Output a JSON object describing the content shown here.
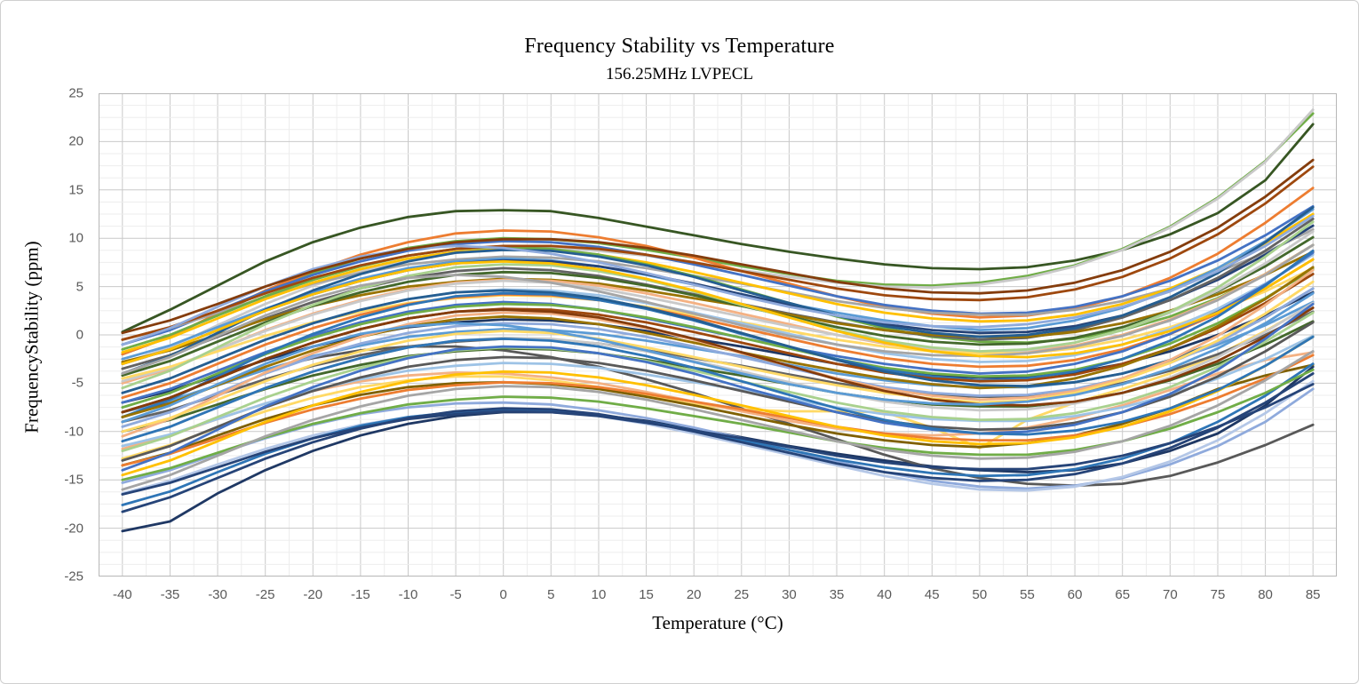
{
  "chart_data": {
    "type": "line",
    "title": "Frequency Stability vs Temperature",
    "subtitle": "156.25MHz LVPECL",
    "xlabel": "Temperature (°C)",
    "ylabel": "FrequencyStability (ppm)",
    "xlim": [
      -42.5,
      87.5
    ],
    "ylim": [
      -25,
      25
    ],
    "x_ticks": [
      -40,
      -35,
      -30,
      -25,
      -20,
      -15,
      -10,
      -5,
      0,
      5,
      10,
      15,
      20,
      25,
      30,
      35,
      40,
      45,
      50,
      55,
      60,
      65,
      70,
      75,
      80,
      85
    ],
    "y_ticks": [
      25,
      20,
      15,
      10,
      5,
      0,
      -5,
      -10,
      -15,
      -20,
      -25
    ],
    "grid": {
      "x_major": 5,
      "x_minor": 2.5,
      "y_major": 5,
      "y_minor": 1.25,
      "major_color": "#c9c9c9",
      "minor_color": "#ededed",
      "border_color": "#b7b7b7"
    },
    "legend": "none",
    "tick_label_color": "#595959",
    "line_width": 2.8,
    "x": [
      -40,
      -35,
      -30,
      -25,
      -20,
      -15,
      -10,
      -5,
      0,
      5,
      10,
      15,
      20,
      25,
      30,
      35,
      40,
      45,
      50,
      55,
      60,
      65,
      70,
      75,
      80,
      85
    ],
    "shapes": {
      "A": [
        0,
        1.5,
        3.5,
        5.5,
        7.2,
        8.6,
        9.7,
        10.4,
        10.7,
        10.6,
        10.1,
        9.3,
        8.3,
        7.2,
        6.1,
        5.0,
        4.1,
        3.5,
        3.2,
        3.3,
        3.9,
        5.0,
        6.6,
        8.7,
        11.3,
        14.3
      ],
      "B": [
        0,
        1.2,
        2.8,
        4.4,
        5.8,
        6.9,
        7.8,
        8.3,
        8.6,
        8.5,
        8.1,
        7.4,
        6.6,
        5.8,
        4.9,
        4.0,
        3.3,
        2.8,
        2.6,
        2.6,
        3.1,
        4.0,
        5.3,
        7.0,
        9.0,
        11.4
      ],
      "C": [
        0,
        1.8,
        4.2,
        6.6,
        8.6,
        10.3,
        11.6,
        12.5,
        12.8,
        12.7,
        12.1,
        11.2,
        10.0,
        8.6,
        7.3,
        6.0,
        4.9,
        4.2,
        3.8,
        4.0,
        4.7,
        6.0,
        7.9,
        10.4,
        13.6,
        17.2
      ],
      "D": [
        0,
        1.5,
        3.5,
        5.5,
        7.2,
        8.6,
        9.7,
        10.4,
        10.6,
        10.4,
        9.8,
        8.8,
        7.6,
        6.2,
        4.8,
        3.4,
        2.2,
        1.3,
        0.8,
        0.7,
        1.1,
        2.0,
        3.4,
        5.3,
        7.8,
        10.8
      ],
      "E": [
        0,
        1.7,
        3.9,
        6.0,
        7.8,
        9.1,
        9.9,
        10.2,
        10.0,
        9.4,
        8.5,
        7.4,
        6.2,
        5.0,
        3.9,
        3.0,
        2.3,
        1.9,
        1.8,
        2.1,
        2.8,
        3.9,
        5.5,
        7.6,
        10.2,
        13.3
      ],
      "F": [
        0,
        1.3,
        3.0,
        4.8,
        6.4,
        7.7,
        8.7,
        9.4,
        9.7,
        9.7,
        9.4,
        8.8,
        8.0,
        7.1,
        6.2,
        5.3,
        4.6,
        4.2,
        4.1,
        4.4,
        5.2,
        6.5,
        8.4,
        10.9,
        14.1,
        17.9
      ],
      "G": [
        0,
        1.4,
        3.3,
        5.2,
        6.9,
        8.3,
        9.4,
        10.1,
        10.4,
        10.2,
        9.6,
        8.7,
        7.7,
        6.7,
        5.7,
        4.8,
        4.0,
        3.4,
        3.0,
        3.2,
        4.0,
        5.3,
        7.1,
        9.4,
        12.2,
        15.5
      ]
    },
    "series": [
      {
        "color": "#375623",
        "values": [
          0.3,
          2.6,
          5.1,
          7.6,
          9.6,
          11.1,
          12.2,
          12.8,
          12.9,
          12.8,
          12.1,
          11.2,
          10.3,
          9.4,
          8.6,
          7.9,
          7.3,
          6.9,
          6.8,
          7.0,
          7.7,
          8.8,
          10.4,
          12.6,
          16.0,
          21.8
        ]
      },
      {
        "color": "#70AD47",
        "values": [
          -2.0,
          -0.2,
          2.2,
          4.5,
          6.4,
          7.9,
          9.0,
          9.7,
          10.0,
          9.9,
          9.5,
          8.8,
          8.0,
          7.1,
          6.3,
          5.6,
          5.2,
          5.1,
          5.4,
          6.1,
          7.2,
          8.9,
          11.2,
          14.2,
          18.0,
          22.9
        ]
      },
      {
        "color": "#C9C9C9",
        "values": [
          -3.0,
          -1.3,
          1.0,
          3.2,
          5.1,
          6.6,
          7.7,
          8.5,
          8.9,
          9.0,
          8.7,
          8.2,
          7.5,
          6.7,
          6.0,
          5.4,
          5.0,
          4.9,
          5.2,
          5.9,
          7.1,
          8.8,
          11.1,
          14.1,
          17.9,
          23.3
        ]
      },
      {
        "color": "#1F3864",
        "values": [
          -20.3,
          -19.3,
          -16.4,
          -14.0,
          -12.0,
          -10.4,
          -9.2,
          -8.4,
          -8.0,
          -8.0,
          -8.3,
          -8.9,
          -9.7,
          -10.6,
          -11.5,
          -12.3,
          -13.0,
          -13.6,
          -14.0,
          -14.2,
          -14.0,
          -13.3,
          -12.0,
          -10.2,
          -7.3,
          -3.3
        ]
      },
      {
        "color": "#595959",
        "values": [
          -8.5,
          -7.0,
          -5.2,
          -3.6,
          -2.4,
          -1.6,
          -1.2,
          -1.2,
          -1.6,
          -2.3,
          -3.3,
          -4.6,
          -6.0,
          -7.6,
          -9.2,
          -10.8,
          -12.4,
          -13.8,
          -14.8,
          -15.4,
          -15.6,
          -15.4,
          -14.6,
          -13.2,
          -11.4,
          -9.3
        ]
      },
      {
        "color": "#8FAADC",
        "values": [
          -15.3,
          -14.0,
          -12.3,
          -10.7,
          -9.3,
          -8.2,
          -7.5,
          -7.1,
          -7.0,
          -7.2,
          -7.8,
          -8.6,
          -9.6,
          -10.7,
          -11.9,
          -13.1,
          -14.2,
          -15.1,
          -15.7,
          -15.9,
          -15.6,
          -14.8,
          -13.4,
          -11.5,
          -9.0,
          -5.6
        ]
      },
      {
        "color": "#B4C7E7",
        "values": [
          -16.4,
          -15.1,
          -13.4,
          -11.8,
          -10.4,
          -9.3,
          -8.5,
          -8.0,
          -7.8,
          -7.9,
          -8.4,
          -9.2,
          -10.2,
          -11.3,
          -12.4,
          -13.5,
          -14.6,
          -15.4,
          -16.0,
          -16.1,
          -15.7,
          -14.7,
          -13.1,
          -10.9,
          -8.1,
          -4.8
        ]
      },
      {
        "color": "#FFD966",
        "values": [
          -12.8,
          -11.4,
          -9.6,
          -7.9,
          -6.5,
          -5.4,
          -4.7,
          -4.3,
          -4.3,
          -4.7,
          -5.4,
          -6.3,
          -7.2,
          -7.7,
          -7.9,
          -7.9,
          -8.0,
          -9.6,
          -11.7,
          -8.8,
          -7.0,
          -5.6,
          -4.0,
          -2.1,
          0.4,
          3.2
        ]
      },
      {
        "color": "#7F6000",
        "values": [
          -13.5,
          -12.2,
          -10.4,
          -8.7,
          -7.3,
          -6.2,
          -5.4,
          -5.0,
          -4.9,
          -5.1,
          -5.6,
          -6.4,
          -7.3,
          -8.3,
          -9.3,
          -10.2,
          -10.9,
          -11.4,
          -11.6,
          -11.2,
          -10.4,
          -9.2,
          -7.6,
          -5.6,
          -4.2,
          -3.1
        ]
      },
      {
        "color": "#F4B183",
        "values": [
          -11.8,
          -10.4,
          -8.7,
          -7.1,
          -5.8,
          -4.8,
          -4.2,
          -3.9,
          -4.0,
          -4.4,
          -5.0,
          -5.9,
          -6.9,
          -7.9,
          -8.9,
          -9.7,
          -10.2,
          -10.4,
          -10.2,
          -9.6,
          -8.6,
          -7.3,
          -5.7,
          -4.0,
          -2.6,
          -1.8
        ]
      },
      {
        "color": "#2E75B6",
        "values": [
          -17.6,
          -16.2,
          -14.2,
          -12.3,
          -10.7,
          -9.4,
          -8.5,
          -8.0,
          -7.8,
          -7.9,
          -8.3,
          -9.0,
          -9.9,
          -10.9,
          -11.9,
          -12.9,
          -13.7,
          -14.3,
          -14.6,
          -14.5,
          -13.9,
          -12.8,
          -11.2,
          -9.0,
          -6.3,
          -3.0
        ]
      },
      {
        "color": "#264478",
        "shape": "A",
        "offset": -18.3
      },
      {
        "color": "#ED7D31",
        "shape": "C",
        "offset": -2.0
      },
      {
        "color": "#4472C4",
        "shape": "A",
        "offset": -1.0
      },
      {
        "color": "#A5A5A5",
        "shape": "B",
        "offset": -0.5
      },
      {
        "color": "#FFC000",
        "shape": "A",
        "offset": -1.8
      },
      {
        "color": "#5B9BD5",
        "shape": "G",
        "offset": -2.5
      },
      {
        "color": "#70AD47",
        "shape": "D",
        "offset": -1.5
      },
      {
        "color": "#264478",
        "shape": "A",
        "offset": -3.0
      },
      {
        "color": "#9E480E",
        "shape": "F",
        "offset": -0.5
      },
      {
        "color": "#636363",
        "shape": "G",
        "offset": -3.5
      },
      {
        "color": "#997300",
        "shape": "B",
        "offset": -2.8
      },
      {
        "color": "#255E91",
        "shape": "C",
        "offset": -4.0
      },
      {
        "color": "#43682B",
        "shape": "A",
        "offset": -4.2
      },
      {
        "color": "#8FAADC",
        "shape": "E",
        "offset": -1.0
      },
      {
        "color": "#F4B183",
        "shape": "A",
        "offset": -5.0
      },
      {
        "color": "#C9C9C9",
        "shape": "G",
        "offset": -4.8
      },
      {
        "color": "#FFD966",
        "shape": "B",
        "offset": -4.5
      },
      {
        "color": "#9DC3E6",
        "shape": "A",
        "offset": -6.0
      },
      {
        "color": "#A9D18E",
        "shape": "C",
        "offset": -5.5
      },
      {
        "color": "#843C0C",
        "shape": "F",
        "offset": 0.2
      },
      {
        "color": "#1F3864",
        "shape": "B",
        "offset": -7.0
      },
      {
        "color": "#ED7D31",
        "shape": "A",
        "offset": -6.5
      },
      {
        "color": "#4472C4",
        "shape": "G",
        "offset": -7.0
      },
      {
        "color": "#A5A5A5",
        "shape": "E",
        "offset": -4.0
      },
      {
        "color": "#FFC000",
        "shape": "D",
        "offset": -3.0
      },
      {
        "color": "#5B9BD5",
        "shape": "B",
        "offset": -8.0
      },
      {
        "color": "#70AD47",
        "shape": "A",
        "offset": -7.5
      },
      {
        "color": "#2E75B6",
        "shape": "C",
        "offset": -8.5
      },
      {
        "color": "#9E480E",
        "shape": "A",
        "offset": -8.0
      },
      {
        "color": "#636363",
        "shape": "B",
        "offset": -9.0
      },
      {
        "color": "#997300",
        "shape": "G",
        "offset": -8.5
      },
      {
        "color": "#255E91",
        "shape": "D",
        "offset": -6.0
      },
      {
        "color": "#43682B",
        "shape": "B",
        "offset": -10.0
      },
      {
        "color": "#8FAADC",
        "shape": "A",
        "offset": -9.5
      },
      {
        "color": "#F4B183",
        "shape": "C",
        "offset": -10.5
      },
      {
        "color": "#C9C9C9",
        "shape": "A",
        "offset": -11.0
      },
      {
        "color": "#FFD966",
        "shape": "G",
        "offset": -10.0
      },
      {
        "color": "#9DC3E6",
        "shape": "B",
        "offset": -11.5
      },
      {
        "color": "#A9D18E",
        "shape": "A",
        "offset": -12.0
      },
      {
        "color": "#843C0C",
        "shape": "D",
        "offset": -8.0
      },
      {
        "color": "#595959",
        "shape": "A",
        "offset": -13.0
      },
      {
        "color": "#ED7D31",
        "shape": "B",
        "offset": -13.5
      },
      {
        "color": "#4472C4",
        "shape": "C",
        "offset": -14.0
      },
      {
        "color": "#FFC000",
        "shape": "A",
        "offset": -14.5
      },
      {
        "color": "#5B9BD5",
        "shape": "E",
        "offset": -9.0
      },
      {
        "color": "#70AD47",
        "shape": "B",
        "offset": -15.0
      },
      {
        "color": "#A5A5A5",
        "shape": "A",
        "offset": -16.0
      },
      {
        "color": "#2E75B6",
        "shape": "D",
        "offset": -11.0
      },
      {
        "color": "#264478",
        "shape": "B",
        "offset": -16.5
      }
    ]
  }
}
